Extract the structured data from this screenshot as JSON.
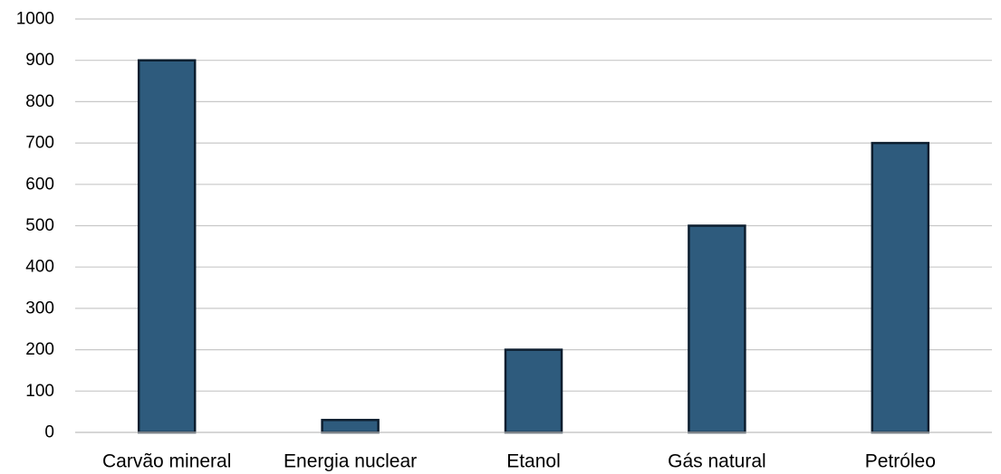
{
  "chart_data": {
    "type": "bar",
    "categories": [
      "Carvão mineral",
      "Energia nuclear",
      "Etanol",
      "Gás natural",
      "Petróleo"
    ],
    "values": [
      900,
      30,
      200,
      500,
      700
    ],
    "ylim": [
      0,
      1000
    ],
    "yticks": [
      0,
      100,
      200,
      300,
      400,
      500,
      600,
      700,
      800,
      900,
      1000
    ],
    "grid": true,
    "legend": "none",
    "colors": {
      "bar_fill": "#2e5b7d",
      "bar_stroke": "#0d1e2f",
      "grid": "#c8c8c8"
    }
  }
}
